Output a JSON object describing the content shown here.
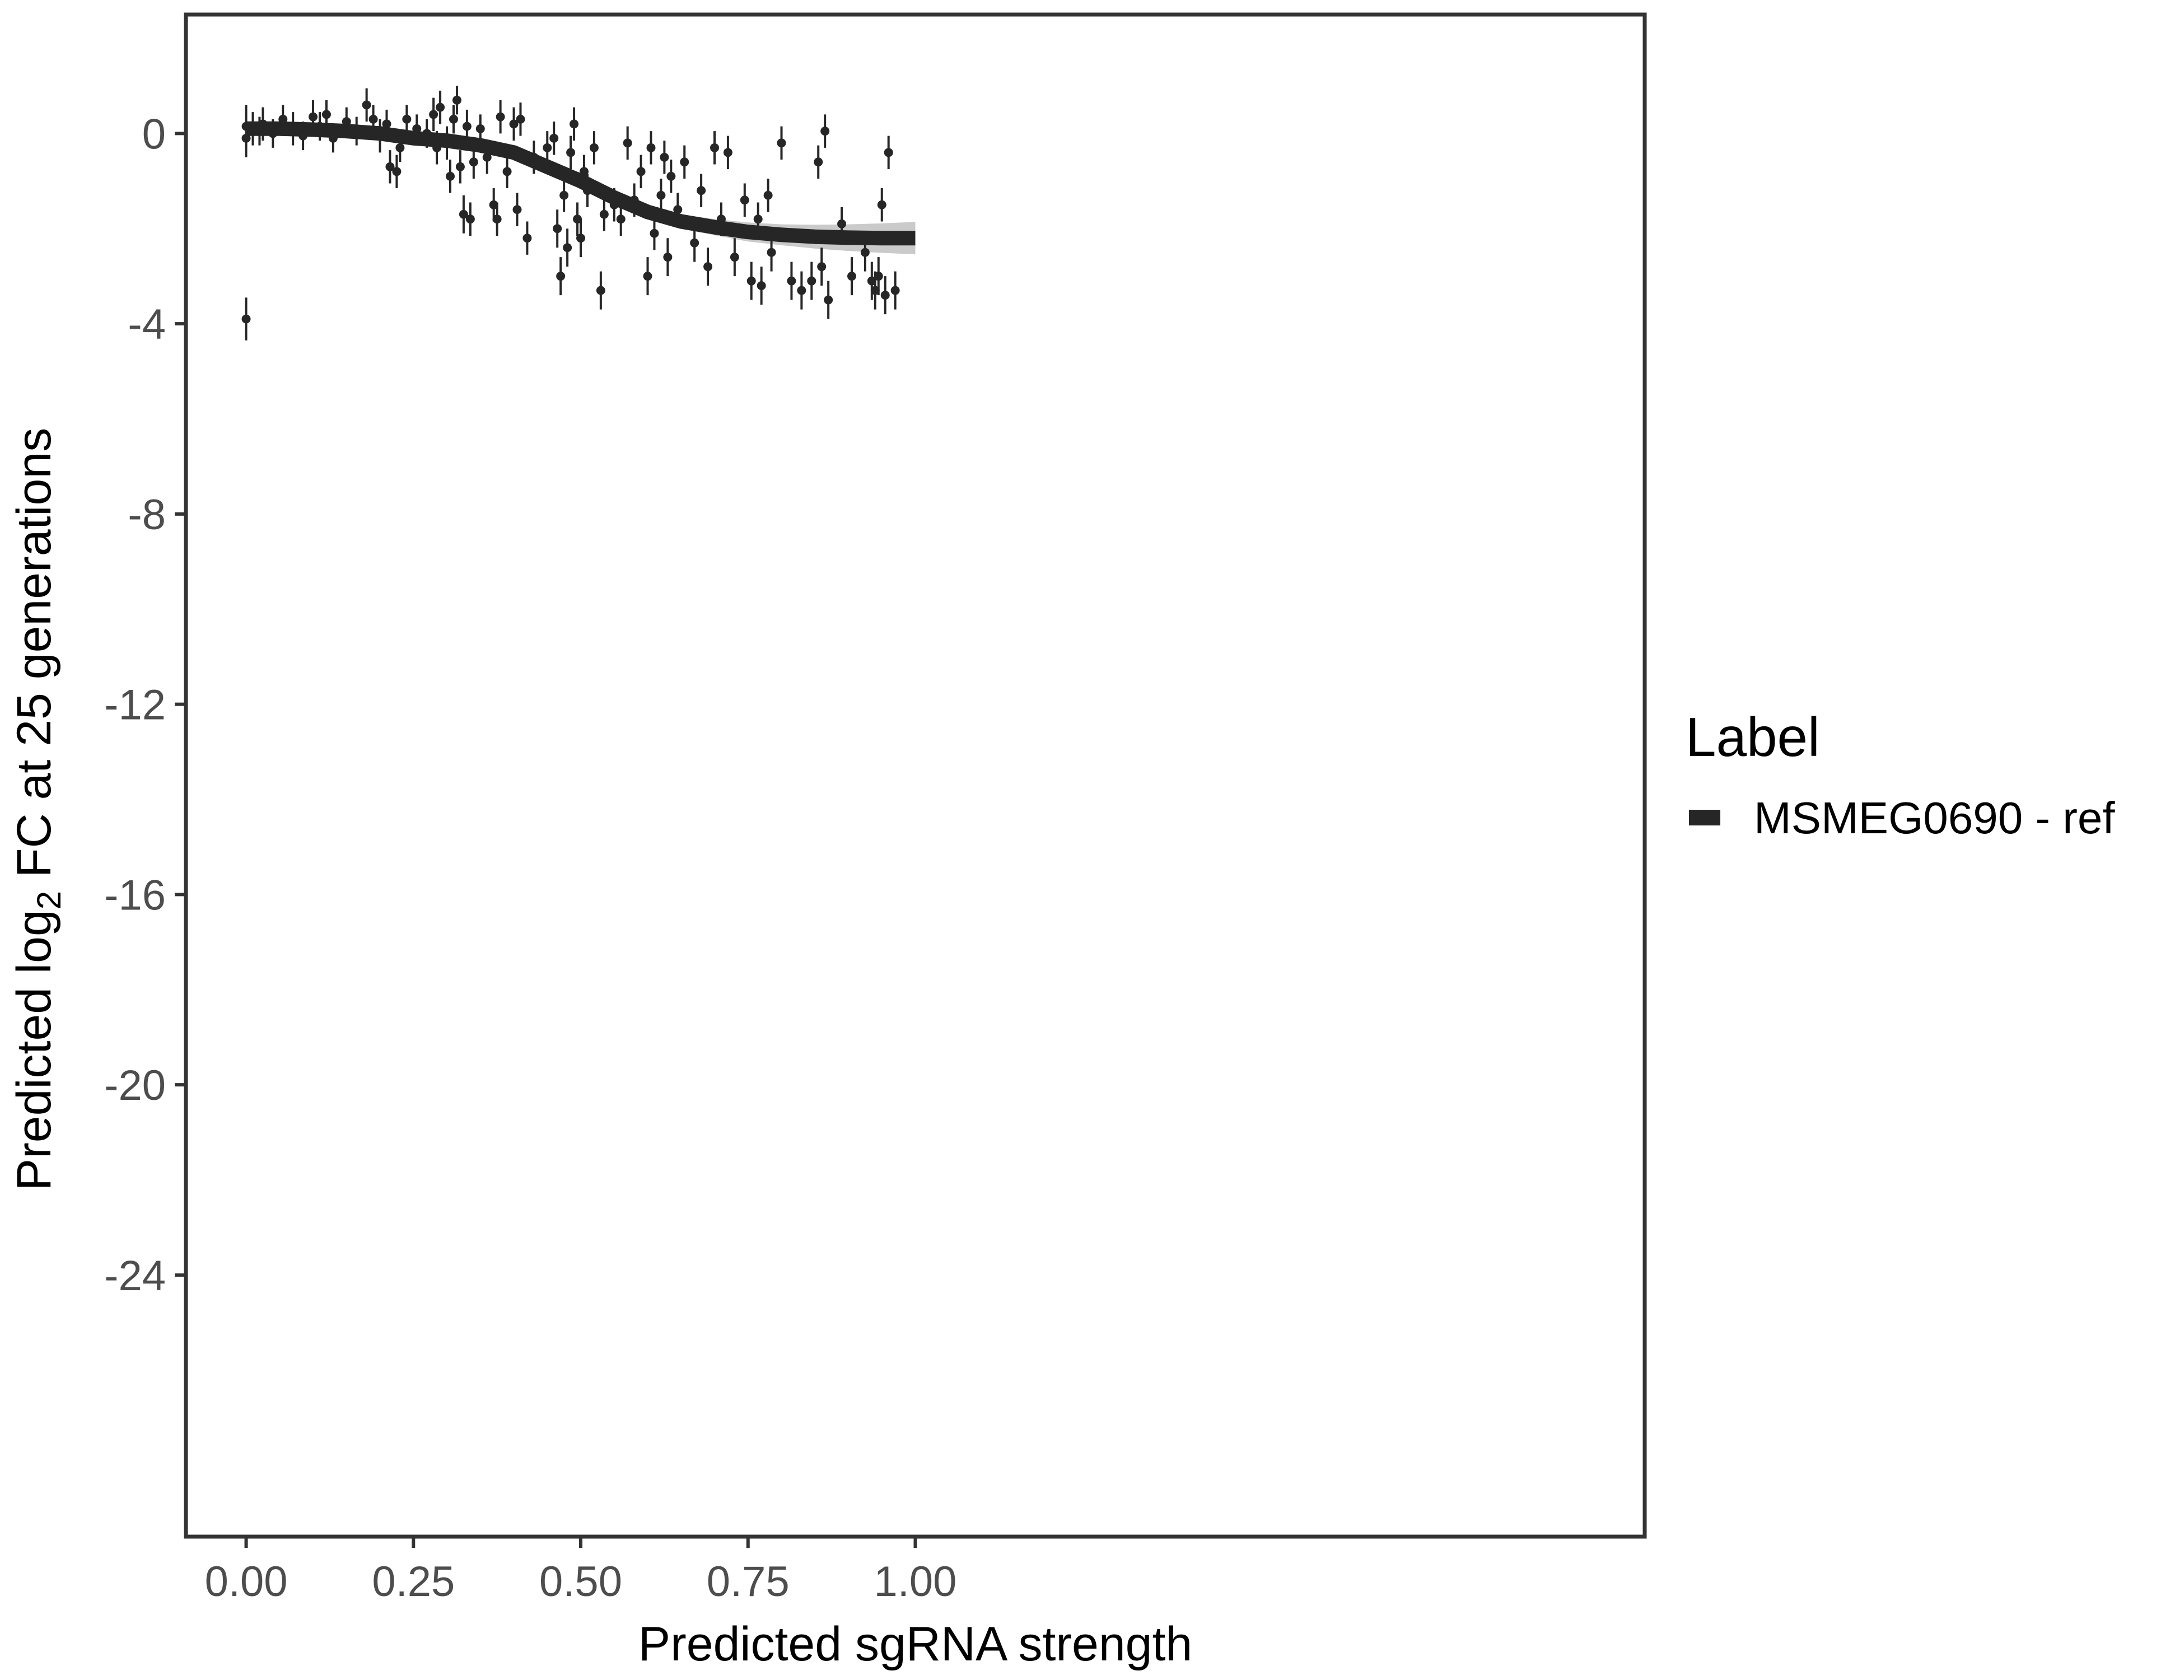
{
  "chart_data": {
    "type": "scatter",
    "xlabel": "Predicted sgRNA strength",
    "ylabel_prefix": "Predicted  log",
    "ylabel_subscript": "2",
    "ylabel_suffix": " FC at 25 generations",
    "xlim": [
      -0.09,
      2.09
    ],
    "ylim": [
      -29.5,
      2.5
    ],
    "x_ticks": [
      0,
      0.25,
      0.5,
      0.75,
      1
    ],
    "x_tick_labels": [
      "0.00",
      "0.25",
      "0.50",
      "0.75",
      "1.00"
    ],
    "y_ticks": [
      0,
      -4,
      -8,
      -12,
      -16,
      -20,
      -24
    ],
    "y_tick_labels": [
      "0",
      "-4",
      "-8",
      "-12",
      "-16",
      "-20",
      "-24"
    ],
    "grid": false,
    "legend": {
      "title": "Label",
      "position": "right",
      "entries": [
        {
          "label": "MSMEG0690 - ref",
          "color": "#262626"
        }
      ]
    },
    "series": [
      {
        "name": "MSMEG0690 - ref",
        "color": "#262626",
        "fit_curve": {
          "x": [
            0,
            0.05,
            0.1,
            0.15,
            0.2,
            0.25,
            0.3,
            0.35,
            0.4,
            0.45,
            0.5,
            0.55,
            0.6,
            0.65,
            0.7,
            0.75,
            0.8,
            0.85,
            0.9,
            0.95,
            1.0
          ],
          "y": [
            0.1,
            0.1,
            0.08,
            0.05,
            0.0,
            -0.1,
            -0.15,
            -0.25,
            -0.4,
            -0.7,
            -1.0,
            -1.35,
            -1.65,
            -1.85,
            -1.97,
            -2.07,
            -2.13,
            -2.17,
            -2.19,
            -2.2,
            -2.2
          ],
          "ci_halfwidth": [
            0.08,
            0.07,
            0.06,
            0.06,
            0.07,
            0.08,
            0.09,
            0.1,
            0.12,
            0.13,
            0.14,
            0.14,
            0.14,
            0.15,
            0.17,
            0.2,
            0.22,
            0.25,
            0.28,
            0.31,
            0.34
          ]
        },
        "points": [
          {
            "x": 0.0,
            "y": 0.15,
            "err": 0.45
          },
          {
            "x": 0.0,
            "y": -3.9,
            "err": 0.45
          },
          {
            "x": 0.0,
            "y": -0.1,
            "err": 0.4
          },
          {
            "x": 0.01,
            "y": 0.1,
            "err": 0.35
          },
          {
            "x": 0.02,
            "y": 0.05,
            "err": 0.3
          },
          {
            "x": 0.025,
            "y": 0.2,
            "err": 0.35
          },
          {
            "x": 0.04,
            "y": 0.0,
            "err": 0.3
          },
          {
            "x": 0.055,
            "y": 0.3,
            "err": 0.3
          },
          {
            "x": 0.07,
            "y": 0.1,
            "err": 0.35
          },
          {
            "x": 0.085,
            "y": -0.05,
            "err": 0.3
          },
          {
            "x": 0.1,
            "y": 0.35,
            "err": 0.35
          },
          {
            "x": 0.11,
            "y": 0.15,
            "err": 0.3
          },
          {
            "x": 0.12,
            "y": 0.4,
            "err": 0.3
          },
          {
            "x": 0.13,
            "y": -0.1,
            "err": 0.3
          },
          {
            "x": 0.15,
            "y": 0.25,
            "err": 0.3
          },
          {
            "x": 0.165,
            "y": 0.05,
            "err": 0.3
          },
          {
            "x": 0.18,
            "y": 0.6,
            "err": 0.35
          },
          {
            "x": 0.19,
            "y": 0.3,
            "err": 0.3
          },
          {
            "x": 0.2,
            "y": -0.05,
            "err": 0.35
          },
          {
            "x": 0.21,
            "y": 0.2,
            "err": 0.3
          },
          {
            "x": 0.215,
            "y": -0.7,
            "err": 0.35
          },
          {
            "x": 0.225,
            "y": -0.8,
            "err": 0.35
          },
          {
            "x": 0.23,
            "y": -0.3,
            "err": 0.3
          },
          {
            "x": 0.24,
            "y": 0.3,
            "err": 0.3
          },
          {
            "x": 0.255,
            "y": 0.1,
            "err": 0.3
          },
          {
            "x": 0.27,
            "y": 0.0,
            "err": 0.3
          },
          {
            "x": 0.28,
            "y": 0.4,
            "err": 0.35
          },
          {
            "x": 0.285,
            "y": -0.3,
            "err": 0.35
          },
          {
            "x": 0.29,
            "y": 0.55,
            "err": 0.35
          },
          {
            "x": 0.3,
            "y": -0.2,
            "err": 0.35
          },
          {
            "x": 0.305,
            "y": -0.9,
            "err": 0.35
          },
          {
            "x": 0.31,
            "y": 0.3,
            "err": 0.3
          },
          {
            "x": 0.315,
            "y": 0.7,
            "err": 0.3
          },
          {
            "x": 0.32,
            "y": -0.7,
            "err": 0.35
          },
          {
            "x": 0.325,
            "y": -1.7,
            "err": 0.4
          },
          {
            "x": 0.33,
            "y": 0.15,
            "err": 0.35
          },
          {
            "x": 0.335,
            "y": -1.8,
            "err": 0.35
          },
          {
            "x": 0.34,
            "y": -0.6,
            "err": 0.35
          },
          {
            "x": 0.35,
            "y": 0.1,
            "err": 0.3
          },
          {
            "x": 0.36,
            "y": -0.5,
            "err": 0.35
          },
          {
            "x": 0.37,
            "y": -1.5,
            "err": 0.35
          },
          {
            "x": 0.375,
            "y": -1.8,
            "err": 0.35
          },
          {
            "x": 0.38,
            "y": 0.35,
            "err": 0.35
          },
          {
            "x": 0.39,
            "y": -0.8,
            "err": 0.35
          },
          {
            "x": 0.4,
            "y": 0.2,
            "err": 0.35
          },
          {
            "x": 0.405,
            "y": -1.6,
            "err": 0.35
          },
          {
            "x": 0.41,
            "y": 0.3,
            "err": 0.35
          },
          {
            "x": 0.42,
            "y": -2.2,
            "err": 0.35
          },
          {
            "x": 0.43,
            "y": -0.5,
            "err": 0.35
          },
          {
            "x": 0.45,
            "y": -0.3,
            "err": 0.35
          },
          {
            "x": 0.46,
            "y": -0.1,
            "err": 0.35
          },
          {
            "x": 0.465,
            "y": -2.0,
            "err": 0.4
          },
          {
            "x": 0.47,
            "y": -3.0,
            "err": 0.4
          },
          {
            "x": 0.475,
            "y": -1.3,
            "err": 0.35
          },
          {
            "x": 0.48,
            "y": -2.4,
            "err": 0.4
          },
          {
            "x": 0.485,
            "y": -0.4,
            "err": 0.35
          },
          {
            "x": 0.49,
            "y": 0.2,
            "err": 0.35
          },
          {
            "x": 0.495,
            "y": -1.8,
            "err": 0.35
          },
          {
            "x": 0.5,
            "y": -2.2,
            "err": 0.4
          },
          {
            "x": 0.505,
            "y": -0.8,
            "err": 0.35
          },
          {
            "x": 0.51,
            "y": -1.2,
            "err": 0.35
          },
          {
            "x": 0.52,
            "y": -0.3,
            "err": 0.35
          },
          {
            "x": 0.53,
            "y": -3.3,
            "err": 0.4
          },
          {
            "x": 0.535,
            "y": -1.7,
            "err": 0.35
          },
          {
            "x": 0.55,
            "y": -1.5,
            "err": 0.35
          },
          {
            "x": 0.56,
            "y": -1.8,
            "err": 0.35
          },
          {
            "x": 0.57,
            "y": -0.2,
            "err": 0.35
          },
          {
            "x": 0.58,
            "y": -1.4,
            "err": 0.35
          },
          {
            "x": 0.59,
            "y": -0.8,
            "err": 0.35
          },
          {
            "x": 0.6,
            "y": -3.0,
            "err": 0.4
          },
          {
            "x": 0.605,
            "y": -0.3,
            "err": 0.35
          },
          {
            "x": 0.61,
            "y": -2.1,
            "err": 0.35
          },
          {
            "x": 0.62,
            "y": -1.3,
            "err": 0.35
          },
          {
            "x": 0.625,
            "y": -0.5,
            "err": 0.35
          },
          {
            "x": 0.63,
            "y": -2.6,
            "err": 0.4
          },
          {
            "x": 0.635,
            "y": -0.9,
            "err": 0.35
          },
          {
            "x": 0.645,
            "y": -1.6,
            "err": 0.35
          },
          {
            "x": 0.655,
            "y": -0.6,
            "err": 0.35
          },
          {
            "x": 0.67,
            "y": -2.3,
            "err": 0.4
          },
          {
            "x": 0.68,
            "y": -1.2,
            "err": 0.35
          },
          {
            "x": 0.69,
            "y": -2.8,
            "err": 0.4
          },
          {
            "x": 0.7,
            "y": -0.3,
            "err": 0.35
          },
          {
            "x": 0.71,
            "y": -1.8,
            "err": 0.35
          },
          {
            "x": 0.72,
            "y": -0.4,
            "err": 0.35
          },
          {
            "x": 0.73,
            "y": -2.6,
            "err": 0.4
          },
          {
            "x": 0.745,
            "y": -1.4,
            "err": 0.35
          },
          {
            "x": 0.755,
            "y": -3.1,
            "err": 0.4
          },
          {
            "x": 0.765,
            "y": -1.8,
            "err": 0.35
          },
          {
            "x": 0.77,
            "y": -3.2,
            "err": 0.4
          },
          {
            "x": 0.78,
            "y": -1.3,
            "err": 0.35
          },
          {
            "x": 0.785,
            "y": -2.5,
            "err": 0.4
          },
          {
            "x": 0.8,
            "y": -0.2,
            "err": 0.35
          },
          {
            "x": 0.815,
            "y": -3.1,
            "err": 0.4
          },
          {
            "x": 0.83,
            "y": -3.3,
            "err": 0.4
          },
          {
            "x": 0.845,
            "y": -3.1,
            "err": 0.4
          },
          {
            "x": 0.855,
            "y": -0.6,
            "err": 0.35
          },
          {
            "x": 0.86,
            "y": -2.8,
            "err": 0.4
          },
          {
            "x": 0.865,
            "y": 0.05,
            "err": 0.35
          },
          {
            "x": 0.87,
            "y": -3.5,
            "err": 0.4
          },
          {
            "x": 0.89,
            "y": -1.9,
            "err": 0.35
          },
          {
            "x": 0.905,
            "y": -3.0,
            "err": 0.4
          },
          {
            "x": 0.925,
            "y": -2.5,
            "err": 0.4
          },
          {
            "x": 0.935,
            "y": -3.1,
            "err": 0.4
          },
          {
            "x": 0.94,
            "y": -3.3,
            "err": 0.4
          },
          {
            "x": 0.945,
            "y": -3.0,
            "err": 0.4
          },
          {
            "x": 0.95,
            "y": -1.5,
            "err": 0.35
          },
          {
            "x": 0.955,
            "y": -3.4,
            "err": 0.4
          },
          {
            "x": 0.96,
            "y": -0.4,
            "err": 0.35
          },
          {
            "x": 0.97,
            "y": -3.3,
            "err": 0.4
          }
        ]
      }
    ]
  }
}
